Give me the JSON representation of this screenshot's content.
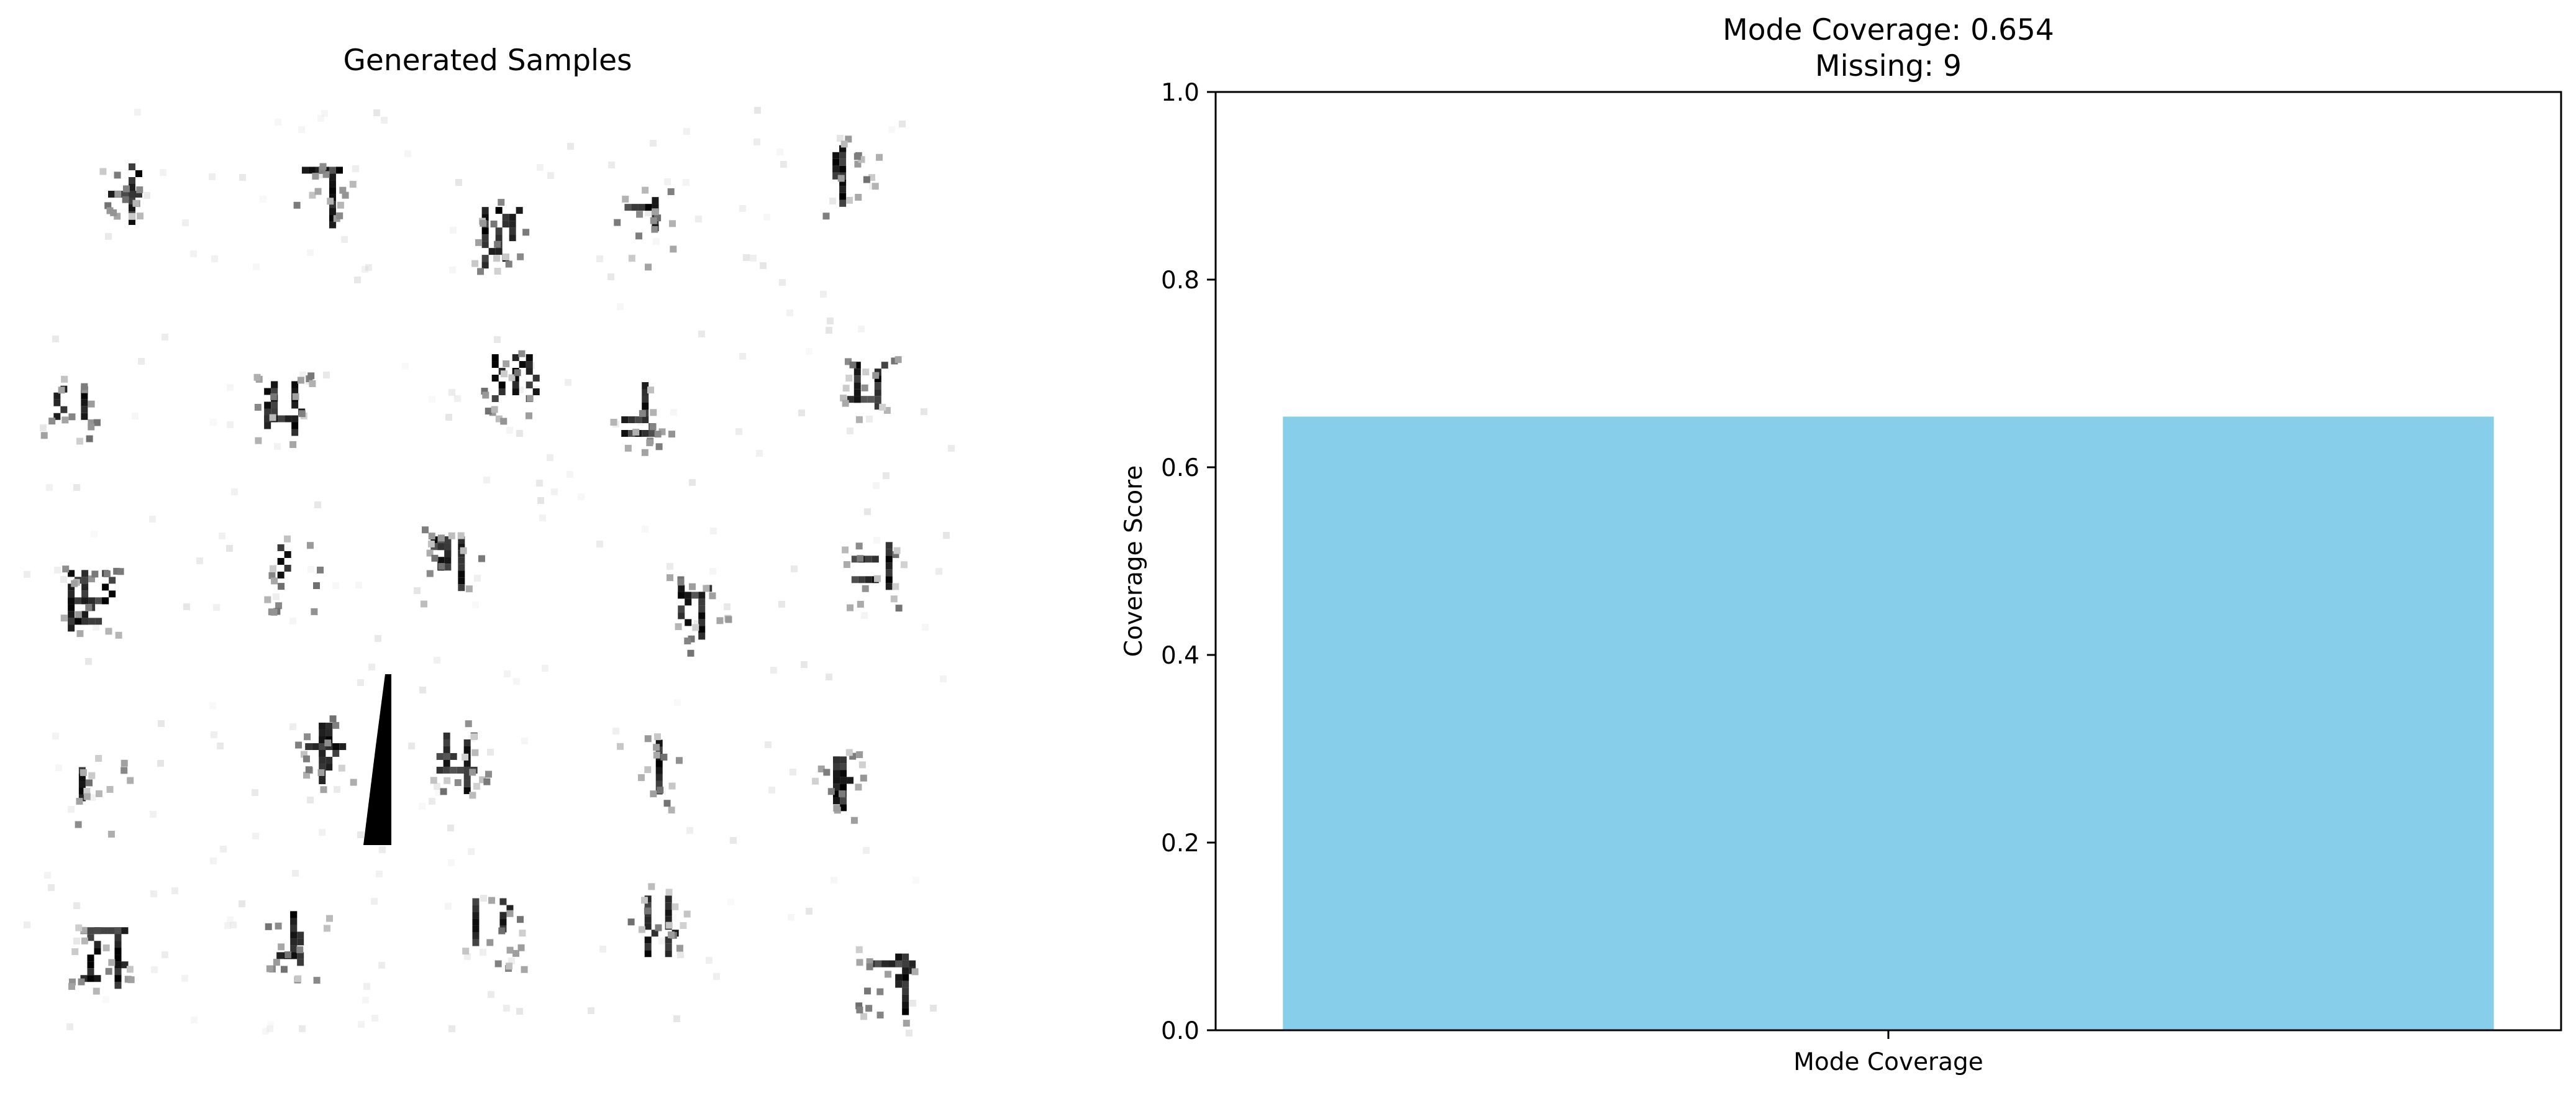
{
  "left_panel": {
    "title": "Generated Samples",
    "grid_rows": 5,
    "grid_cols": 5
  },
  "chart_data": {
    "type": "bar",
    "title_lines": [
      "Mode Coverage: 0.654",
      "Missing: 9"
    ],
    "categories": [
      "Mode Coverage"
    ],
    "values": [
      0.654
    ],
    "ylabel": "Coverage Score",
    "xlabel": "",
    "ylim": [
      0,
      1.0
    ],
    "yticks": [
      0.0,
      0.2,
      0.4,
      0.6,
      0.8,
      1.0
    ],
    "ytick_labels": [
      "0.0",
      "0.2",
      "0.4",
      "0.6",
      "0.8",
      "1.0"
    ],
    "bar_color": "#87CEEB",
    "grid": false
  }
}
